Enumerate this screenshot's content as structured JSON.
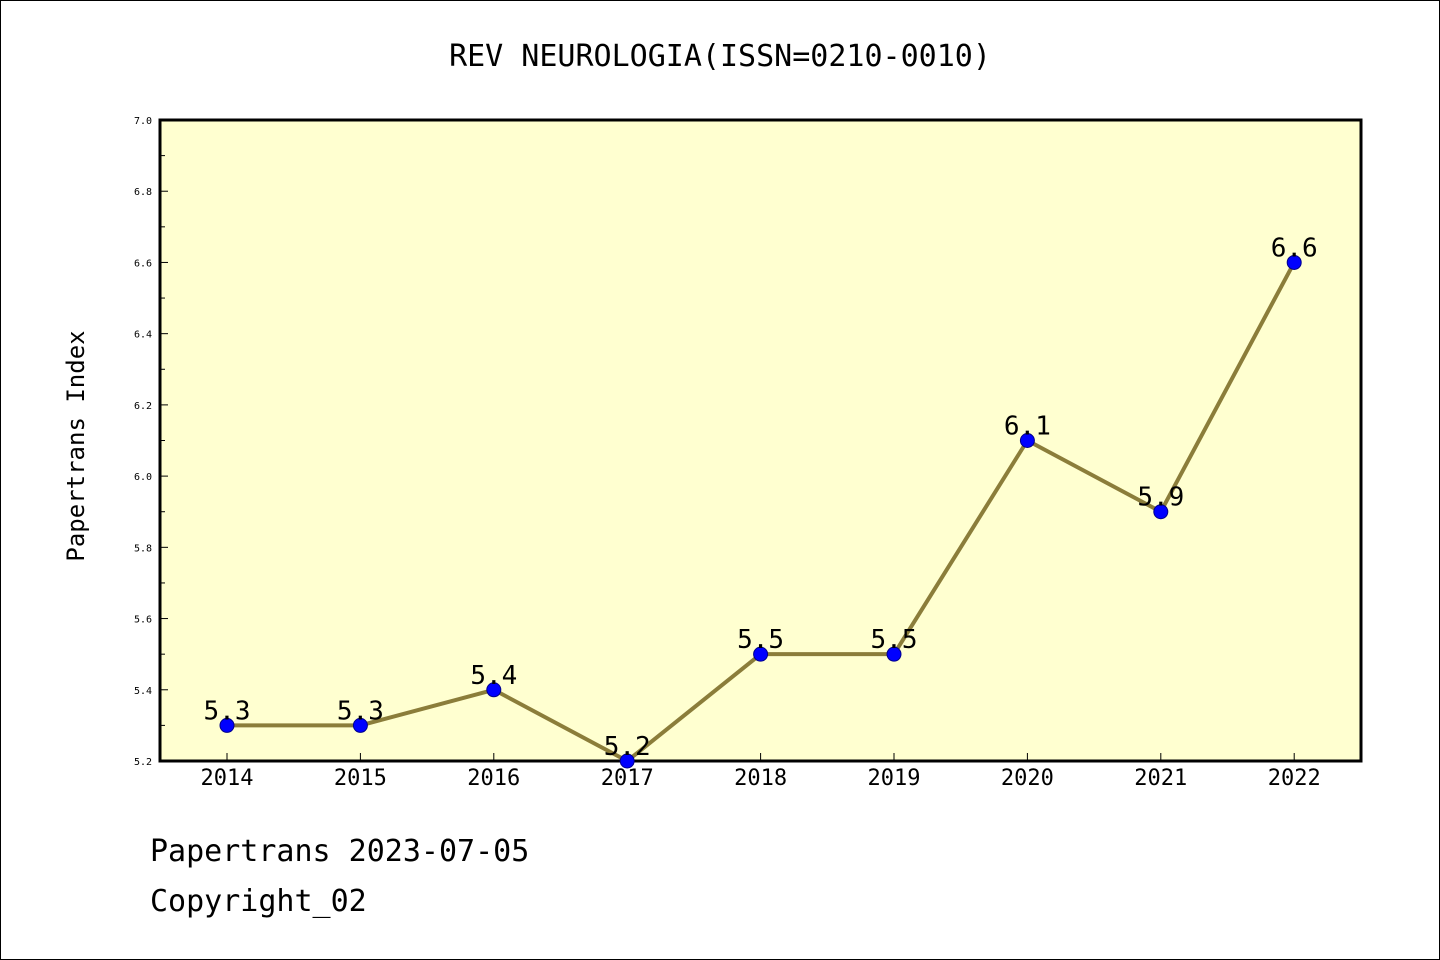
{
  "chart_data": {
    "type": "line",
    "title": "REV NEUROLOGIA(ISSN=0210-0010)",
    "xlabel": "",
    "ylabel": "Papertrans Index",
    "categories": [
      "2014",
      "2015",
      "2016",
      "2017",
      "2018",
      "2019",
      "2020",
      "2021",
      "2022"
    ],
    "series": [
      {
        "values": [
          5.3,
          5.3,
          5.4,
          5.2,
          5.5,
          5.5,
          6.1,
          5.9,
          6.6
        ]
      }
    ],
    "data_labels": [
      "5.3",
      "5.3",
      "5.4",
      "5.2",
      "5.5",
      "5.5",
      "6.1",
      "5.9",
      "6.6"
    ],
    "ylim": [
      5.2,
      7.0
    ],
    "yticks": [
      "5.2",
      "5.4",
      "5.6",
      "5.8",
      "6.0",
      "6.2",
      "6.4",
      "6.6",
      "6.8",
      "7.0"
    ],
    "grid": false,
    "legend": "none",
    "colors": {
      "plot_background": "#ffffd0",
      "line": "#8b7d3a",
      "marker": "#0000ff",
      "marker_edge": "#00008b"
    }
  },
  "footer": {
    "stamp": "Papertrans 2023-07-05",
    "copyright": "Copyright_02"
  }
}
